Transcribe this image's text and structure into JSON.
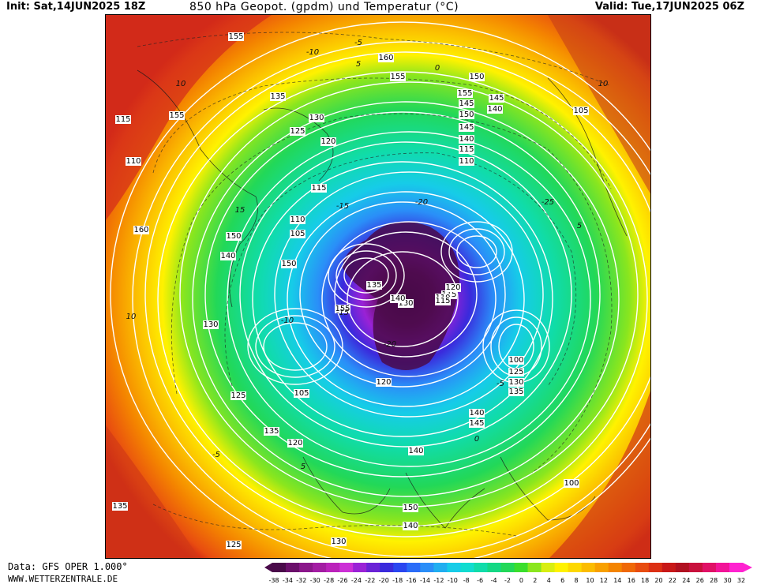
{
  "header": {
    "init": "Init: Sat,14JUN2025 18Z",
    "title": "850 hPa Geopot. (gpdm) und Temperatur (°C)",
    "valid": "Valid: Tue,17JUN2025 06Z"
  },
  "footer": {
    "source": "Data: GFS OPER 1.000°",
    "site": "WWW.WETTERZENTRALE.DE"
  },
  "legend": {
    "ticks": [
      "-38",
      "-34",
      "-32",
      "-30",
      "-28",
      "-26",
      "-24",
      "-22",
      "-20",
      "-18",
      "-16",
      "-14",
      "-12",
      "-10",
      "-8",
      "-6",
      "-4",
      "-2",
      "0",
      "2",
      "4",
      "6",
      "8",
      "10",
      "12",
      "14",
      "16",
      "18",
      "20",
      "22",
      "24",
      "26",
      "28",
      "30",
      "32"
    ],
    "colors": [
      "#4a0a4a",
      "#6b0f6b",
      "#8a168a",
      "#a31ca3",
      "#bb22bb",
      "#cc2fd6",
      "#9a22d6",
      "#6a22d6",
      "#3a2adc",
      "#2a46f0",
      "#2a6cf8",
      "#2a8ef8",
      "#20aef0",
      "#16cce8",
      "#10dcd0",
      "#10dcaa",
      "#14d884",
      "#22d858",
      "#3ade2c",
      "#8ae61e",
      "#d8ee12",
      "#fff200",
      "#fdd800",
      "#fbbc00",
      "#f8a000",
      "#f48400",
      "#ef6808",
      "#e84c10",
      "#dc3014",
      "#c81818",
      "#b01020",
      "#c8103c",
      "#e01066",
      "#f21498",
      "#ff22d0"
    ]
  },
  "map": {
    "geopot_labels": [
      "155",
      "160",
      "155",
      "150",
      "145",
      "140",
      "135",
      "130",
      "125",
      "120",
      "115",
      "110",
      "105",
      "150",
      "155",
      "150",
      "140",
      "130",
      "125",
      "135",
      "120",
      "115",
      "110",
      "105",
      "100",
      "135",
      "125",
      "130",
      "140",
      "150",
      "140",
      "155",
      "145",
      "150",
      "145",
      "140",
      "115",
      "110",
      "120",
      "115",
      "110",
      "105",
      "100",
      "125",
      "130",
      "135",
      "140",
      "145",
      "160",
      "155",
      "130",
      "135",
      "140",
      "120",
      "115"
    ],
    "temp_labels": [
      "-10",
      "-5",
      "0",
      "5",
      "-15",
      "-20",
      "-25",
      "10",
      "15",
      "10",
      "5",
      "-5",
      "-10",
      "-15",
      "-20",
      "10",
      "5",
      "-5",
      "0"
    ]
  }
}
